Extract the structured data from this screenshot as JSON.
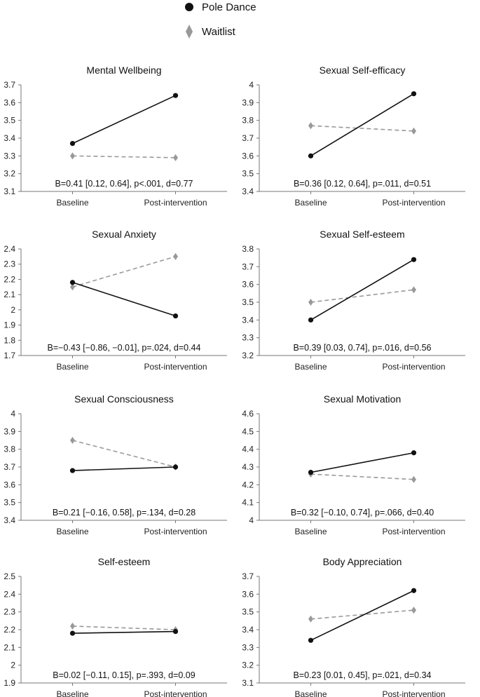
{
  "legend": {
    "items": [
      {
        "label": "Pole Dance",
        "marker": "circle",
        "color": "#111111",
        "dash": "solid"
      },
      {
        "label": "Waitlist",
        "marker": "diamond",
        "color": "#999999",
        "dash": "dashed"
      }
    ]
  },
  "chart_data": [
    {
      "type": "line",
      "title": "Mental Wellbeing",
      "categories": [
        "Baseline",
        "Post-intervention"
      ],
      "ylim": [
        3.1,
        3.7
      ],
      "yticks": [
        "3.1",
        "3.2",
        "3.3",
        "3.4",
        "3.5",
        "3.6",
        "3.7"
      ],
      "series": [
        {
          "name": "Pole Dance",
          "values": [
            3.37,
            3.64
          ]
        },
        {
          "name": "Waitlist",
          "values": [
            3.3,
            3.29
          ]
        }
      ],
      "annotation": "B=0.41 [0.12, 0.64], p<.001, d=0.77"
    },
    {
      "type": "line",
      "title": "Sexual Self-efficacy",
      "categories": [
        "Baseline",
        "Post-intervention"
      ],
      "ylim": [
        3.4,
        4.0
      ],
      "yticks": [
        "3.4",
        "3.5",
        "3.6",
        "3.7",
        "3.8",
        "3.9",
        "4"
      ],
      "series": [
        {
          "name": "Pole Dance",
          "values": [
            3.6,
            3.95
          ]
        },
        {
          "name": "Waitlist",
          "values": [
            3.77,
            3.74
          ]
        }
      ],
      "annotation": "B=0.36 [0.12, 0.64], p=.011, d=0.51"
    },
    {
      "type": "line",
      "title": "Sexual Anxiety",
      "categories": [
        "Baseline",
        "Post-intervention"
      ],
      "ylim": [
        1.7,
        2.4
      ],
      "yticks": [
        "1.7",
        "1.8",
        "1.9",
        "2",
        "2.1",
        "2.2",
        "2.3",
        "2.4"
      ],
      "series": [
        {
          "name": "Pole Dance",
          "values": [
            2.18,
            1.96
          ]
        },
        {
          "name": "Waitlist",
          "values": [
            2.15,
            2.35
          ]
        }
      ],
      "annotation": "B=−0.43 [−0.86, −0.01], p=.024, d=0.44"
    },
    {
      "type": "line",
      "title": "Sexual Self-esteem",
      "categories": [
        "Baseline",
        "Post-intervention"
      ],
      "ylim": [
        3.2,
        3.8
      ],
      "yticks": [
        "3.2",
        "3.3",
        "3.4",
        "3.5",
        "3.6",
        "3.7",
        "3.8"
      ],
      "series": [
        {
          "name": "Pole Dance",
          "values": [
            3.4,
            3.74
          ]
        },
        {
          "name": "Waitlist",
          "values": [
            3.5,
            3.57
          ]
        }
      ],
      "annotation": "B=0.39 [0.03, 0.74], p=.016, d=0.56"
    },
    {
      "type": "line",
      "title": "Sexual Consciousness",
      "categories": [
        "Baseline",
        "Post-intervention"
      ],
      "ylim": [
        3.4,
        4.0
      ],
      "yticks": [
        "3.4",
        "3.5",
        "3.6",
        "3.7",
        "3.8",
        "3.9",
        "4"
      ],
      "series": [
        {
          "name": "Pole Dance",
          "values": [
            3.68,
            3.7
          ]
        },
        {
          "name": "Waitlist",
          "values": [
            3.85,
            3.7
          ]
        }
      ],
      "annotation": "B=0.21 [−0.16, 0.58], p=.134, d=0.28"
    },
    {
      "type": "line",
      "title": "Sexual Motivation",
      "categories": [
        "Baseline",
        "Post-intervention"
      ],
      "ylim": [
        4.0,
        4.6
      ],
      "yticks": [
        "4",
        "4.1",
        "4.2",
        "4.3",
        "4.4",
        "4.5",
        "4.6"
      ],
      "series": [
        {
          "name": "Pole Dance",
          "values": [
            4.27,
            4.38
          ]
        },
        {
          "name": "Waitlist",
          "values": [
            4.26,
            4.23
          ]
        }
      ],
      "annotation": "B=0.32 [−0.10, 0.74], p=.066, d=0.40"
    },
    {
      "type": "line",
      "title": "Self-esteem",
      "categories": [
        "Baseline",
        "Post-intervention"
      ],
      "ylim": [
        1.9,
        2.5
      ],
      "yticks": [
        "1.9",
        "2",
        "2.1",
        "2.2",
        "2.3",
        "2.4",
        "2.5"
      ],
      "series": [
        {
          "name": "Pole Dance",
          "values": [
            2.18,
            2.19
          ]
        },
        {
          "name": "Waitlist",
          "values": [
            2.22,
            2.2
          ]
        }
      ],
      "annotation": "B=0.02 [−0.11, 0.15], p=.393, d=0.09"
    },
    {
      "type": "line",
      "title": "Body Appreciation",
      "categories": [
        "Baseline",
        "Post-intervention"
      ],
      "ylim": [
        3.1,
        3.7
      ],
      "yticks": [
        "3.1",
        "3.2",
        "3.3",
        "3.4",
        "3.5",
        "3.6",
        "3.7"
      ],
      "series": [
        {
          "name": "Pole Dance",
          "values": [
            3.34,
            3.62
          ]
        },
        {
          "name": "Waitlist",
          "values": [
            3.46,
            3.51
          ]
        }
      ],
      "annotation": "B=0.23 [0.01, 0.45], p=.021, d=0.34"
    }
  ]
}
